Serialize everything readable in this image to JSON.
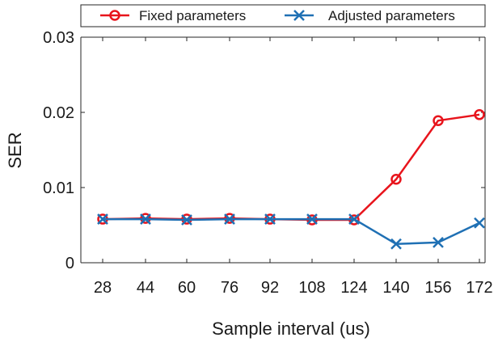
{
  "chart_data": {
    "type": "line",
    "title": "",
    "xlabel": "Sample interval (us)",
    "ylabel": "SER",
    "categories": [
      "28",
      "44",
      "60",
      "76",
      "92",
      "108",
      "124",
      "140",
      "156",
      "172"
    ],
    "ylim": [
      0,
      0.03
    ],
    "yticks": [
      0,
      0.01,
      0.02,
      0.03
    ],
    "ytick_labels": [
      "0",
      "0.01",
      "0.02",
      "0.03"
    ],
    "grid": false,
    "legend_position": "top",
    "series": [
      {
        "name": "Fixed parameters",
        "color": "#e8141c",
        "marker": "circle",
        "values": [
          0.0058,
          0.0059,
          0.0058,
          0.0059,
          0.0058,
          0.0057,
          0.0057,
          0.0111,
          0.0189,
          0.0197
        ]
      },
      {
        "name": "Adjusted parameters",
        "color": "#1f70b4",
        "marker": "x",
        "values": [
          0.0058,
          0.0058,
          0.0057,
          0.0058,
          0.0058,
          0.0058,
          0.0058,
          0.0025,
          0.0027,
          0.0053
        ]
      }
    ]
  }
}
